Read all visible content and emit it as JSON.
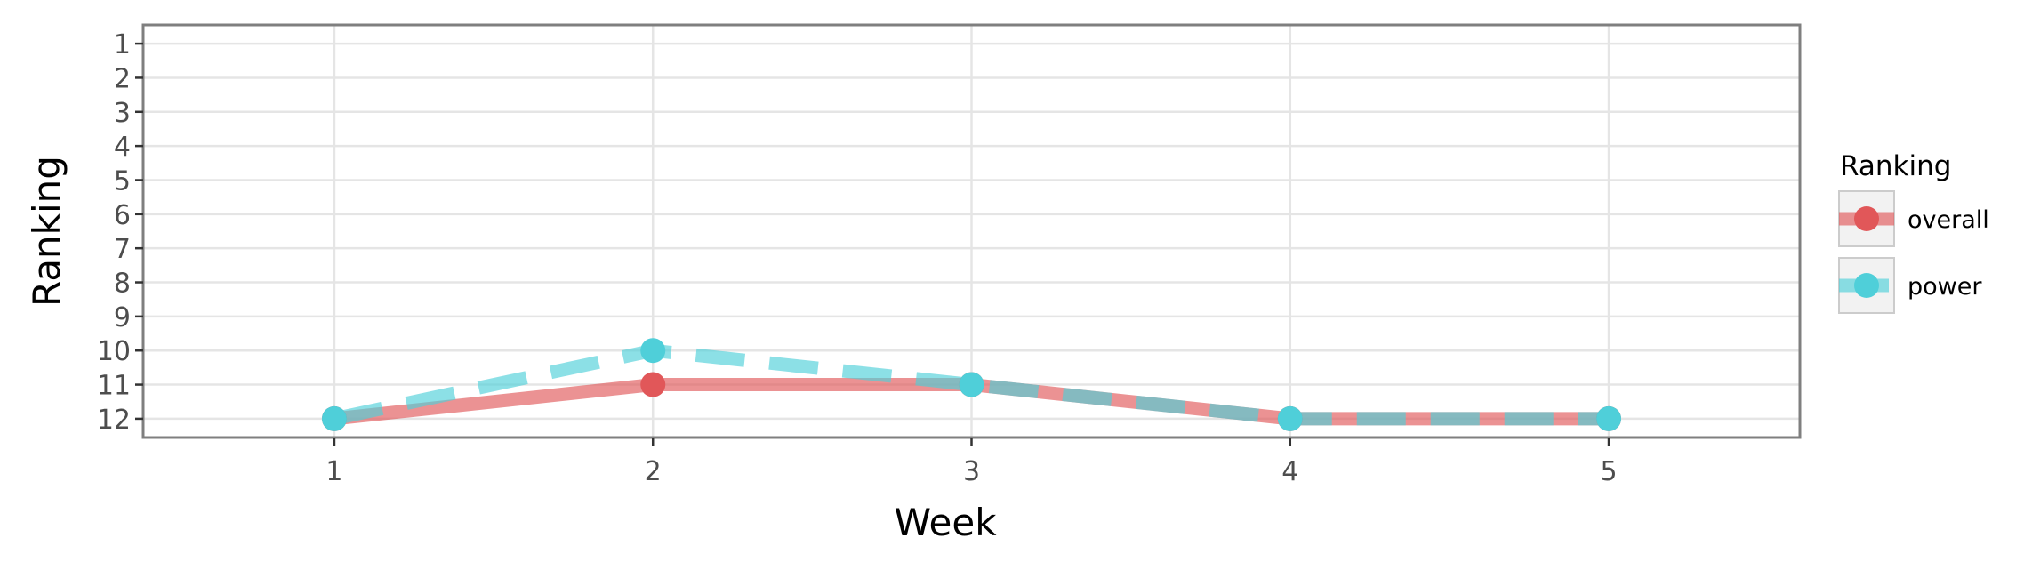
{
  "chart_data": {
    "type": "line",
    "xlabel": "Week",
    "ylabel": "Ranking",
    "x": [
      1,
      2,
      3,
      4,
      5
    ],
    "xlim": [
      0.4,
      5.6
    ],
    "ylim": [
      12.55,
      0.45
    ],
    "y_reversed": true,
    "xticks": [
      "1",
      "2",
      "3",
      "4",
      "5"
    ],
    "yticks": [
      "1",
      "2",
      "3",
      "4",
      "5",
      "6",
      "7",
      "8",
      "9",
      "10",
      "11",
      "12"
    ],
    "grid": true,
    "legend": {
      "title": "Ranking",
      "placement": "right"
    },
    "series": [
      {
        "name": "overall",
        "values": [
          12,
          11,
          11,
          12,
          12
        ],
        "color": "#e15759",
        "line_style": "solid"
      },
      {
        "name": "power",
        "values": [
          12,
          10,
          11,
          12,
          12
        ],
        "color": "#4fcfd9",
        "line_style": "dashed"
      }
    ]
  }
}
